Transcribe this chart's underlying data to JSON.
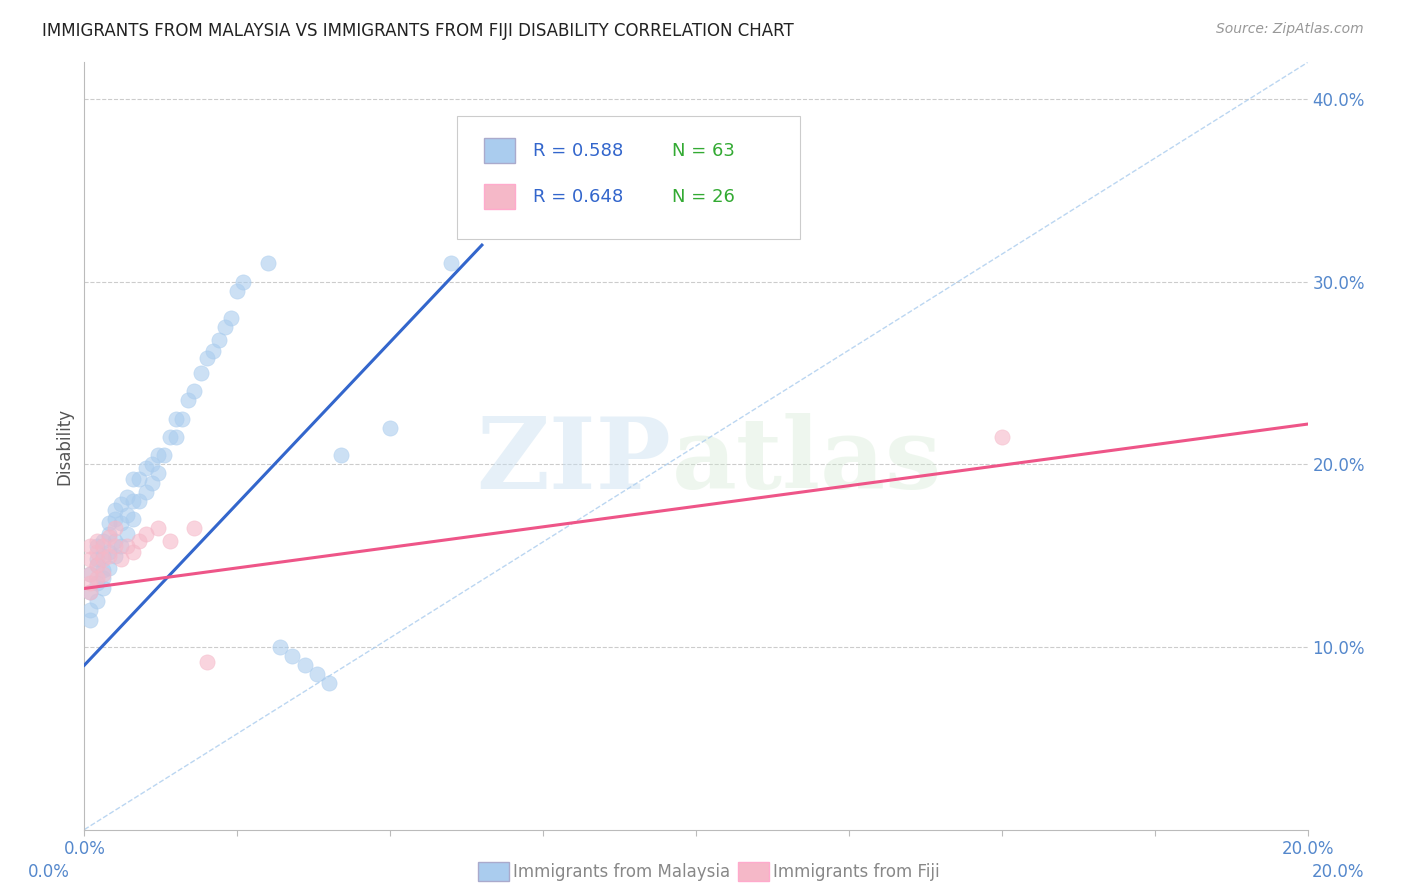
{
  "title": "IMMIGRANTS FROM MALAYSIA VS IMMIGRANTS FROM FIJI DISABILITY CORRELATION CHART",
  "source": "Source: ZipAtlas.com",
  "legend_malaysia": "Immigrants from Malaysia",
  "legend_fiji": "Immigrants from Fiji",
  "ylabel": "Disability",
  "xlim": [
    0.0,
    0.2
  ],
  "ylim": [
    0.0,
    0.42
  ],
  "yticks": [
    0.1,
    0.2,
    0.3,
    0.4
  ],
  "ytick_labels": [
    "10.0%",
    "20.0%",
    "30.0%",
    "40.0%"
  ],
  "xticks": [
    0.0,
    0.025,
    0.05,
    0.075,
    0.1,
    0.125,
    0.15,
    0.175,
    0.2
  ],
  "xtick_labels": [
    "0.0%",
    "",
    "",
    "",
    "",
    "",
    "",
    "",
    "20.0%"
  ],
  "grid_color": "#cccccc",
  "malaysia_color": "#aaccee",
  "fiji_color": "#f5b8c8",
  "malaysia_line_color": "#3366cc",
  "fiji_line_color": "#ee5588",
  "diag_line_color": "#aaccee",
  "R_malaysia": 0.588,
  "N_malaysia": 63,
  "R_fiji": 0.648,
  "N_fiji": 26,
  "watermark_zip": "ZIP",
  "watermark_atlas": "atlas",
  "malaysia_x": [
    0.001,
    0.001,
    0.001,
    0.001,
    0.002,
    0.002,
    0.002,
    0.002,
    0.002,
    0.003,
    0.003,
    0.003,
    0.003,
    0.003,
    0.004,
    0.004,
    0.004,
    0.004,
    0.005,
    0.005,
    0.005,
    0.005,
    0.006,
    0.006,
    0.006,
    0.007,
    0.007,
    0.007,
    0.008,
    0.008,
    0.008,
    0.009,
    0.009,
    0.01,
    0.01,
    0.011,
    0.011,
    0.012,
    0.012,
    0.013,
    0.014,
    0.015,
    0.015,
    0.016,
    0.017,
    0.018,
    0.019,
    0.02,
    0.021,
    0.022,
    0.023,
    0.024,
    0.025,
    0.026,
    0.03,
    0.032,
    0.034,
    0.036,
    0.038,
    0.04,
    0.042,
    0.05,
    0.06
  ],
  "malaysia_y": [
    0.13,
    0.14,
    0.12,
    0.115,
    0.125,
    0.135,
    0.148,
    0.155,
    0.145,
    0.132,
    0.138,
    0.142,
    0.15,
    0.158,
    0.143,
    0.152,
    0.162,
    0.168,
    0.15,
    0.158,
    0.17,
    0.175,
    0.155,
    0.168,
    0.178,
    0.162,
    0.172,
    0.182,
    0.17,
    0.18,
    0.192,
    0.18,
    0.192,
    0.185,
    0.198,
    0.19,
    0.2,
    0.195,
    0.205,
    0.205,
    0.215,
    0.215,
    0.225,
    0.225,
    0.235,
    0.24,
    0.25,
    0.258,
    0.262,
    0.268,
    0.275,
    0.28,
    0.295,
    0.3,
    0.31,
    0.1,
    0.095,
    0.09,
    0.085,
    0.08,
    0.205,
    0.22,
    0.31
  ],
  "fiji_x": [
    0.001,
    0.001,
    0.001,
    0.001,
    0.001,
    0.002,
    0.002,
    0.002,
    0.002,
    0.003,
    0.003,
    0.003,
    0.004,
    0.004,
    0.005,
    0.005,
    0.006,
    0.007,
    0.008,
    0.009,
    0.01,
    0.012,
    0.014,
    0.018,
    0.15,
    0.02
  ],
  "fiji_y": [
    0.13,
    0.14,
    0.148,
    0.155,
    0.135,
    0.138,
    0.145,
    0.152,
    0.158,
    0.14,
    0.148,
    0.155,
    0.15,
    0.16,
    0.155,
    0.165,
    0.148,
    0.155,
    0.152,
    0.158,
    0.162,
    0.165,
    0.158,
    0.165,
    0.215,
    0.092
  ],
  "malaysia_line_x0": 0.0,
  "malaysia_line_y0": 0.09,
  "malaysia_line_x1": 0.065,
  "malaysia_line_y1": 0.32,
  "fiji_line_x0": 0.0,
  "fiji_line_y0": 0.132,
  "fiji_line_x1": 0.2,
  "fiji_line_y1": 0.222
}
